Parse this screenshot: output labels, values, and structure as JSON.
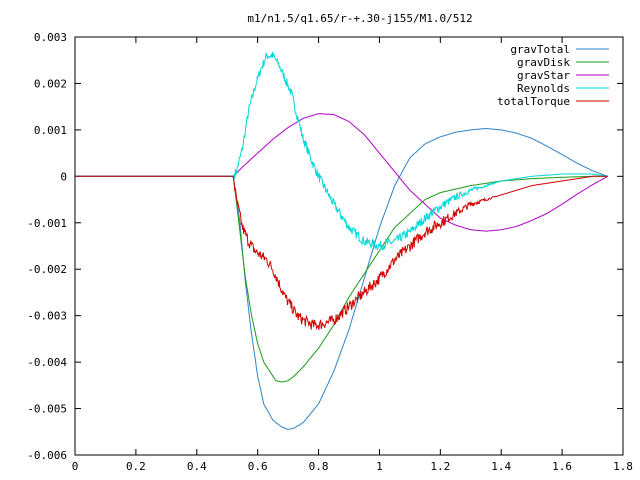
{
  "chart_data": {
    "type": "line",
    "title": "m1/n1.5/q1.65/r-+.30-j155/M1.0/512",
    "xlabel": "",
    "ylabel": "",
    "xlim": [
      0,
      1.8
    ],
    "ylim": [
      -0.006,
      0.003
    ],
    "x_ticks": [
      "0",
      "0.2",
      "0.4",
      "0.6",
      "0.8",
      "1",
      "1.2",
      "1.4",
      "1.6",
      "1.8"
    ],
    "y_ticks": [
      "0.003",
      "0.002",
      "0.001",
      "0",
      "-0.001",
      "-0.002",
      "-0.003",
      "-0.004",
      "-0.005",
      "-0.006"
    ],
    "grid": false,
    "legend_position": "top-right",
    "series": [
      {
        "name": "gravTotal",
        "color": "#2f82c8",
        "noise": 0,
        "x": [
          0,
          0.52,
          0.54,
          0.56,
          0.58,
          0.6,
          0.62,
          0.65,
          0.68,
          0.7,
          0.72,
          0.75,
          0.8,
          0.85,
          0.9,
          0.95,
          1.0,
          1.05,
          1.1,
          1.15,
          1.2,
          1.25,
          1.3,
          1.35,
          1.4,
          1.45,
          1.5,
          1.55,
          1.6,
          1.65,
          1.7,
          1.75
        ],
        "y": [
          0,
          0,
          -0.0009,
          -0.0023,
          -0.0034,
          -0.0043,
          -0.0049,
          -0.00525,
          -0.0054,
          -0.00545,
          -0.00542,
          -0.0053,
          -0.0049,
          -0.0042,
          -0.0033,
          -0.0022,
          -0.0011,
          -0.0002,
          0.0004,
          0.0007,
          0.00085,
          0.00095,
          0.001,
          0.00103,
          0.001,
          0.00093,
          0.00082,
          0.00065,
          0.00047,
          0.00028,
          0.00012,
          0
        ]
      },
      {
        "name": "gravDisk",
        "color": "#1a9a1a",
        "noise": 0,
        "x": [
          0,
          0.52,
          0.54,
          0.56,
          0.58,
          0.6,
          0.62,
          0.64,
          0.66,
          0.68,
          0.7,
          0.72,
          0.75,
          0.8,
          0.85,
          0.9,
          0.95,
          1.0,
          1.05,
          1.1,
          1.15,
          1.2,
          1.3,
          1.4,
          1.5,
          1.6,
          1.7,
          1.75
        ],
        "y": [
          0,
          0,
          -0.0011,
          -0.0022,
          -0.003,
          -0.0036,
          -0.004,
          -0.0042,
          -0.0044,
          -0.00443,
          -0.0044,
          -0.0043,
          -0.0041,
          -0.0037,
          -0.0032,
          -0.0026,
          -0.0021,
          -0.0016,
          -0.0011,
          -0.0008,
          -0.0005,
          -0.00035,
          -0.0002,
          -0.0001,
          -5e-05,
          -2e-05,
          0,
          0
        ]
      },
      {
        "name": "gravStar",
        "color": "#b000c8",
        "noise": 0,
        "x": [
          0,
          0.52,
          0.55,
          0.6,
          0.65,
          0.7,
          0.75,
          0.8,
          0.85,
          0.9,
          0.95,
          1.0,
          1.05,
          1.1,
          1.15,
          1.2,
          1.25,
          1.3,
          1.35,
          1.4,
          1.45,
          1.5,
          1.55,
          1.6,
          1.65,
          1.7,
          1.75
        ],
        "y": [
          0,
          0,
          0.0002,
          0.0005,
          0.0008,
          0.00105,
          0.00125,
          0.00135,
          0.00133,
          0.00118,
          0.0009,
          0.0005,
          0.0001,
          -0.0003,
          -0.0006,
          -0.0009,
          -0.00105,
          -0.00115,
          -0.00118,
          -0.00115,
          -0.00108,
          -0.00095,
          -0.0008,
          -0.0006,
          -0.00038,
          -0.00018,
          0
        ]
      },
      {
        "name": "Reynolds",
        "color": "#00d8d8",
        "noise": 0.0001,
        "x": [
          0,
          0.52,
          0.53,
          0.55,
          0.57,
          0.59,
          0.61,
          0.63,
          0.65,
          0.67,
          0.69,
          0.71,
          0.73,
          0.75,
          0.78,
          0.8,
          0.85,
          0.9,
          0.95,
          1.0,
          1.05,
          1.1,
          1.15,
          1.2,
          1.25,
          1.3,
          1.35,
          1.4,
          1.5,
          1.6,
          1.7,
          1.75
        ],
        "y": [
          0,
          0,
          0.0001,
          0.0006,
          0.0014,
          0.0019,
          0.0023,
          0.0026,
          0.0026,
          0.0024,
          0.0021,
          0.0018,
          0.0013,
          0.0008,
          0.0003,
          0,
          -0.0006,
          -0.0011,
          -0.0014,
          -0.0015,
          -0.0014,
          -0.0012,
          -0.0009,
          -0.00065,
          -0.00045,
          -0.0003,
          -0.0002,
          -0.0001,
          0,
          5e-05,
          5e-05,
          0
        ]
      },
      {
        "name": "totalTorque",
        "color": "#d00000",
        "noise": 0.00012,
        "x": [
          0,
          0.52,
          0.53,
          0.55,
          0.57,
          0.59,
          0.61,
          0.63,
          0.65,
          0.67,
          0.69,
          0.71,
          0.73,
          0.75,
          0.78,
          0.8,
          0.85,
          0.9,
          0.95,
          1.0,
          1.05,
          1.1,
          1.15,
          1.2,
          1.25,
          1.3,
          1.35,
          1.4,
          1.45,
          1.5,
          1.6,
          1.7,
          1.75
        ],
        "y": [
          0,
          0,
          -0.0005,
          -0.0011,
          -0.0014,
          -0.0016,
          -0.0017,
          -0.0018,
          -0.002,
          -0.0023,
          -0.0026,
          -0.0028,
          -0.003,
          -0.0031,
          -0.0032,
          -0.0032,
          -0.0031,
          -0.0028,
          -0.0025,
          -0.0022,
          -0.0018,
          -0.0015,
          -0.0012,
          -0.001,
          -0.0008,
          -0.0006,
          -0.0005,
          -0.0004,
          -0.0003,
          -0.0002,
          -0.0001,
          0,
          0
        ]
      }
    ]
  }
}
